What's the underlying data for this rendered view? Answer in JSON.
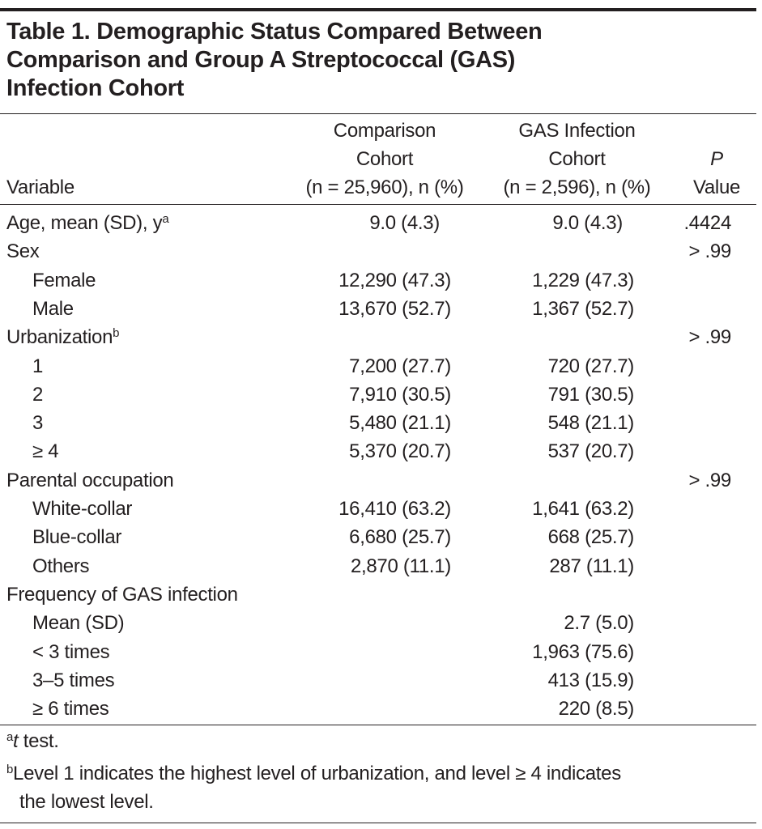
{
  "title_lines": [
    "Table 1. Demographic Status Compared Between",
    "Comparison and Group A Streptococcal (GAS)",
    "Infection Cohort"
  ],
  "header": {
    "variable": "Variable",
    "comparison": [
      "Comparison",
      "Cohort",
      "(n = 25,960), n (%)"
    ],
    "gas": [
      "GAS Infection",
      "Cohort",
      "(n = 2,596), n (%)"
    ],
    "p": [
      "P",
      "Value"
    ]
  },
  "rows": [
    {
      "label": "Age, mean (SD), y",
      "sup": "a",
      "indent": false,
      "comparison": "9.0 (4.3)",
      "gas": "9.0 (4.3)",
      "p": ".4424"
    },
    {
      "label": "Sex",
      "indent": false,
      "comparison": "",
      "gas": "",
      "p": "> .99"
    },
    {
      "label": "Female",
      "indent": true,
      "comparison": "12,290 (47.3)",
      "gas": "1,229 (47.3)",
      "p": ""
    },
    {
      "label": "Male",
      "indent": true,
      "comparison": "13,670 (52.7)",
      "gas": "1,367 (52.7)",
      "p": ""
    },
    {
      "label": "Urbanization",
      "sup": "b",
      "indent": false,
      "comparison": "",
      "gas": "",
      "p": "> .99"
    },
    {
      "label": "1",
      "indent": true,
      "comparison": "7,200 (27.7)",
      "gas": "720 (27.7)",
      "p": ""
    },
    {
      "label": "2",
      "indent": true,
      "comparison": "7,910 (30.5)",
      "gas": "791 (30.5)",
      "p": ""
    },
    {
      "label": "3",
      "indent": true,
      "comparison": "5,480 (21.1)",
      "gas": "548 (21.1)",
      "p": ""
    },
    {
      "label": "≥ 4",
      "indent": true,
      "comparison": "5,370 (20.7)",
      "gas": "537 (20.7)",
      "p": ""
    },
    {
      "label": "Parental occupation",
      "indent": false,
      "comparison": "",
      "gas": "",
      "p": "> .99"
    },
    {
      "label": "White-collar",
      "indent": true,
      "comparison": "16,410 (63.2)",
      "gas": "1,641 (63.2)",
      "p": ""
    },
    {
      "label": "Blue-collar",
      "indent": true,
      "comparison": "6,680 (25.7)",
      "gas": "668 (25.7)",
      "p": ""
    },
    {
      "label": "Others",
      "indent": true,
      "comparison": "2,870 (11.1)",
      "gas": "287 (11.1)",
      "p": ""
    },
    {
      "label": "Frequency of GAS infection",
      "indent": false,
      "comparison": "",
      "gas": "",
      "p": ""
    },
    {
      "label": "Mean (SD)",
      "indent": true,
      "comparison": "",
      "gas": "2.7 (5.0)",
      "p": ""
    },
    {
      "label": "< 3 times",
      "indent": true,
      "comparison": "",
      "gas": "1,963 (75.6)",
      "p": ""
    },
    {
      "label": "3–5 times",
      "indent": true,
      "comparison": "",
      "gas": "413 (15.9)",
      "p": ""
    },
    {
      "label": "≥ 6 times",
      "indent": true,
      "comparison": "",
      "gas": "220 (8.5)",
      "p": ""
    }
  ],
  "footnotes": [
    {
      "mark": "a",
      "text_italic": "t",
      "text": " test."
    },
    {
      "mark": "b",
      "text": "Level 1 indicates the highest level of urbanization, and level ≥ 4 indicates",
      "text2": "the lowest level."
    }
  ]
}
